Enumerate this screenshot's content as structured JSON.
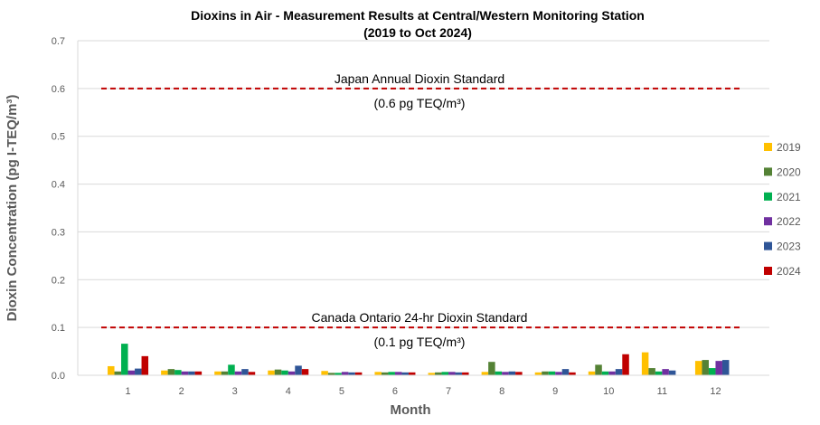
{
  "chart_data": {
    "type": "bar",
    "title": "Dioxins in Air - Measurement Results at Central/Western Monitoring Station",
    "subtitle": "(2019 to Oct 2024)",
    "xlabel": "Month",
    "ylabel": "Dioxin Concentration (pg I-TEQ/m³)",
    "ylim": [
      0,
      0.7
    ],
    "yticks": [
      "0.0",
      "0.1",
      "0.2",
      "0.3",
      "0.4",
      "0.5",
      "0.6",
      "0.7"
    ],
    "grid": true,
    "legend_position": "right",
    "categories": [
      "1",
      "2",
      "3",
      "4",
      "5",
      "6",
      "7",
      "8",
      "9",
      "10",
      "11",
      "12"
    ],
    "series": [
      {
        "name": "2019",
        "color": "#FFC000",
        "values": [
          0.019,
          0.01,
          0.008,
          0.01,
          0.009,
          0.007,
          0.005,
          0.007,
          0.006,
          0.008,
          0.048,
          0.03
        ]
      },
      {
        "name": "2020",
        "color": "#548235",
        "values": [
          0.008,
          0.013,
          0.008,
          0.012,
          0.005,
          0.006,
          0.006,
          0.028,
          0.008,
          0.022,
          0.015,
          0.032
        ]
      },
      {
        "name": "2021",
        "color": "#00B050",
        "values": [
          0.066,
          0.011,
          0.022,
          0.01,
          0.005,
          0.007,
          0.007,
          0.008,
          0.008,
          0.008,
          0.008,
          0.015
        ]
      },
      {
        "name": "2022",
        "color": "#7030A0",
        "values": [
          0.01,
          0.008,
          0.008,
          0.008,
          0.007,
          0.007,
          0.007,
          0.007,
          0.007,
          0.008,
          0.013,
          0.03
        ]
      },
      {
        "name": "2023",
        "color": "#2F5597",
        "values": [
          0.014,
          0.008,
          0.013,
          0.02,
          0.006,
          0.006,
          0.006,
          0.008,
          0.013,
          0.013,
          0.01,
          0.032
        ]
      },
      {
        "name": "2024",
        "color": "#C00000",
        "values": [
          0.04,
          0.008,
          0.007,
          0.013,
          0.006,
          0.006,
          0.006,
          0.007,
          0.006,
          0.044,
          null,
          null
        ]
      }
    ],
    "reference_lines": [
      {
        "value": 0.6,
        "label": "Japan Annual Dioxin Standard",
        "sublabel": "(0.6 pg TEQ/m³)",
        "color": "#C00000"
      },
      {
        "value": 0.1,
        "label": "Canada Ontario 24-hr Dioxin Standard",
        "sublabel": "(0.1 pg TEQ/m³)",
        "color": "#C00000"
      }
    ]
  }
}
